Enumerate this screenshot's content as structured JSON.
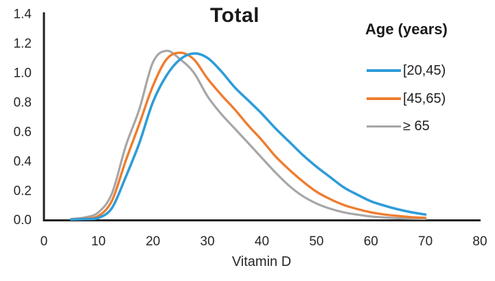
{
  "chart_data": {
    "type": "line",
    "title": "Total",
    "xlabel": "Vitamin D",
    "ylabel": "",
    "legend_title": "Age (years)",
    "legend_position": "right",
    "grid": false,
    "xlim": [
      0,
      80
    ],
    "ylim": [
      0,
      1.4
    ],
    "x_tick_values": [
      0,
      10,
      20,
      30,
      40,
      50,
      60,
      70,
      80
    ],
    "x_tick_labels": [
      "0",
      "10",
      "20",
      "30",
      "40",
      "50",
      "60",
      "70",
      "80"
    ],
    "y_tick_values": [
      0,
      0.2,
      0.4,
      0.6,
      0.8,
      1.0,
      1.2,
      1.4
    ],
    "y_tick_labels": [
      "0.0",
      "0.2",
      "0.4",
      "0.6",
      "0.8",
      "1.0",
      "1.2",
      "1.4"
    ],
    "x": [
      5,
      7.5,
      10,
      12.5,
      15,
      17.5,
      20,
      22.5,
      25,
      27.5,
      30,
      32.5,
      35,
      37.5,
      40,
      42.5,
      45,
      47.5,
      50,
      52.5,
      55,
      57.5,
      60,
      62.5,
      65,
      67.5,
      70
    ],
    "series": [
      {
        "name": "[20,45)",
        "color": "#2f9cd8",
        "peak_x": 27.5,
        "peak_y": 1.13,
        "values": [
          0.001,
          0.004,
          0.012,
          0.08,
          0.29,
          0.52,
          0.8,
          0.98,
          1.09,
          1.13,
          1.1,
          1.01,
          0.9,
          0.81,
          0.72,
          0.62,
          0.53,
          0.44,
          0.36,
          0.29,
          0.22,
          0.17,
          0.125,
          0.095,
          0.07,
          0.05,
          0.035
        ]
      },
      {
        "name": "[45,65)",
        "color": "#ee7d2f",
        "peak_x": 24.5,
        "peak_y": 1.14,
        "values": [
          0.002,
          0.008,
          0.025,
          0.13,
          0.4,
          0.65,
          0.91,
          1.09,
          1.135,
          1.09,
          0.96,
          0.85,
          0.75,
          0.64,
          0.54,
          0.43,
          0.34,
          0.26,
          0.19,
          0.14,
          0.1,
          0.072,
          0.05,
          0.035,
          0.025,
          0.017,
          0.012
        ]
      },
      {
        "name": "≥ 65",
        "color": "#a6a6a6",
        "peak_x": 22,
        "peak_y": 1.15,
        "values": [
          0.004,
          0.015,
          0.05,
          0.18,
          0.5,
          0.75,
          1.07,
          1.148,
          1.09,
          1.0,
          0.84,
          0.72,
          0.62,
          0.52,
          0.42,
          0.32,
          0.23,
          0.16,
          0.11,
          0.075,
          0.05,
          0.034,
          0.022,
          0.015,
          0.01,
          0.007,
          0.005
        ]
      }
    ],
    "axis_color": "#1f1f1f",
    "tick_label_color": "#262626"
  }
}
